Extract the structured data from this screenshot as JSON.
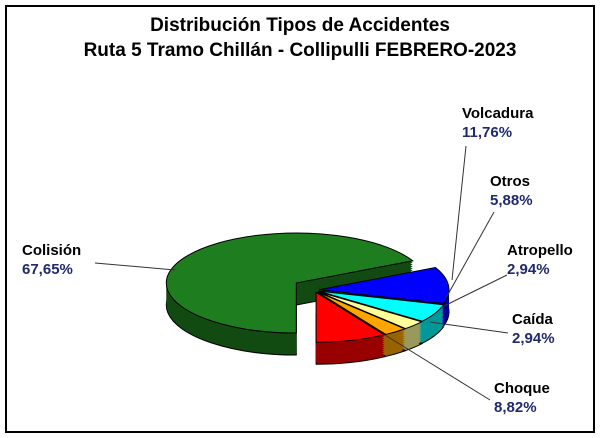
{
  "chart_data": {
    "type": "pie3d",
    "title": "Distribución Tipos de Accidentes",
    "subtitle": "Ruta 5 Tramo Chillán - Collipulli FEBRERO-2023",
    "categories": [
      "Volcadura",
      "Otros",
      "Atropello",
      "Caída",
      "Choque",
      "Colisión"
    ],
    "values": [
      11.76,
      5.88,
      2.94,
      2.94,
      8.82,
      67.65
    ],
    "value_labels": [
      "11,76%",
      "5,88%",
      "2,94%",
      "2,94%",
      "8,82%",
      "67,65%"
    ],
    "colors": [
      "#0000ff",
      "#00ffff",
      "#ffff99",
      "#ffa500",
      "#ff0000",
      "#1e7d1e"
    ]
  }
}
